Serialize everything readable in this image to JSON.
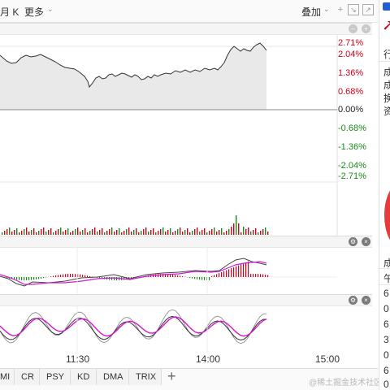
{
  "toolbar": {
    "month_k_label": "月 K",
    "more_label": "更多",
    "more_chevron": "chevron-down-icon",
    "overlay_label": "叠加",
    "icons": [
      "chevron-down-icon",
      "zoom-in-icon",
      "fullscreen-icon"
    ]
  },
  "main_chart": {
    "price_labels": [
      {
        "text": "2.71%",
        "color": "#d0021b"
      },
      {
        "text": "2.04%",
        "color": "#d0021b"
      },
      {
        "text": "1.36%",
        "color": "#d0021b"
      },
      {
        "text": "0.68%",
        "color": "#d0021b"
      },
      {
        "text": "0.00%",
        "color": "#222222"
      },
      {
        "text": "-0.68%",
        "color": "#1a8a1a"
      },
      {
        "text": "-1.36%",
        "color": "#1a8a1a"
      },
      {
        "text": "-2.04%",
        "color": "#1a8a1a"
      },
      {
        "text": "-2.71%",
        "color": "#1a8a1a"
      }
    ],
    "line_color": "#333333",
    "area_color": "#e9e9e9"
  },
  "time_axis": {
    "labels": [
      "11:30",
      "14:00",
      "15:00"
    ]
  },
  "indicator_tabs": [
    "MI",
    "CR",
    "PSY",
    "KD",
    "DMA",
    "TRIX"
  ],
  "add_tab_label": "+",
  "right_panel": {
    "items": [
      "行",
      "成",
      "成",
      "换",
      "资",
      "成",
      "午",
      "6",
      "0",
      "6",
      "3",
      "0",
      "6",
      "0"
    ]
  },
  "colors": {
    "up": "#d0021b",
    "down": "#1a8a1a",
    "magenta": "#d21ad2",
    "gray": "#999999"
  },
  "watermark": "@稀土掘金技术社区"
}
